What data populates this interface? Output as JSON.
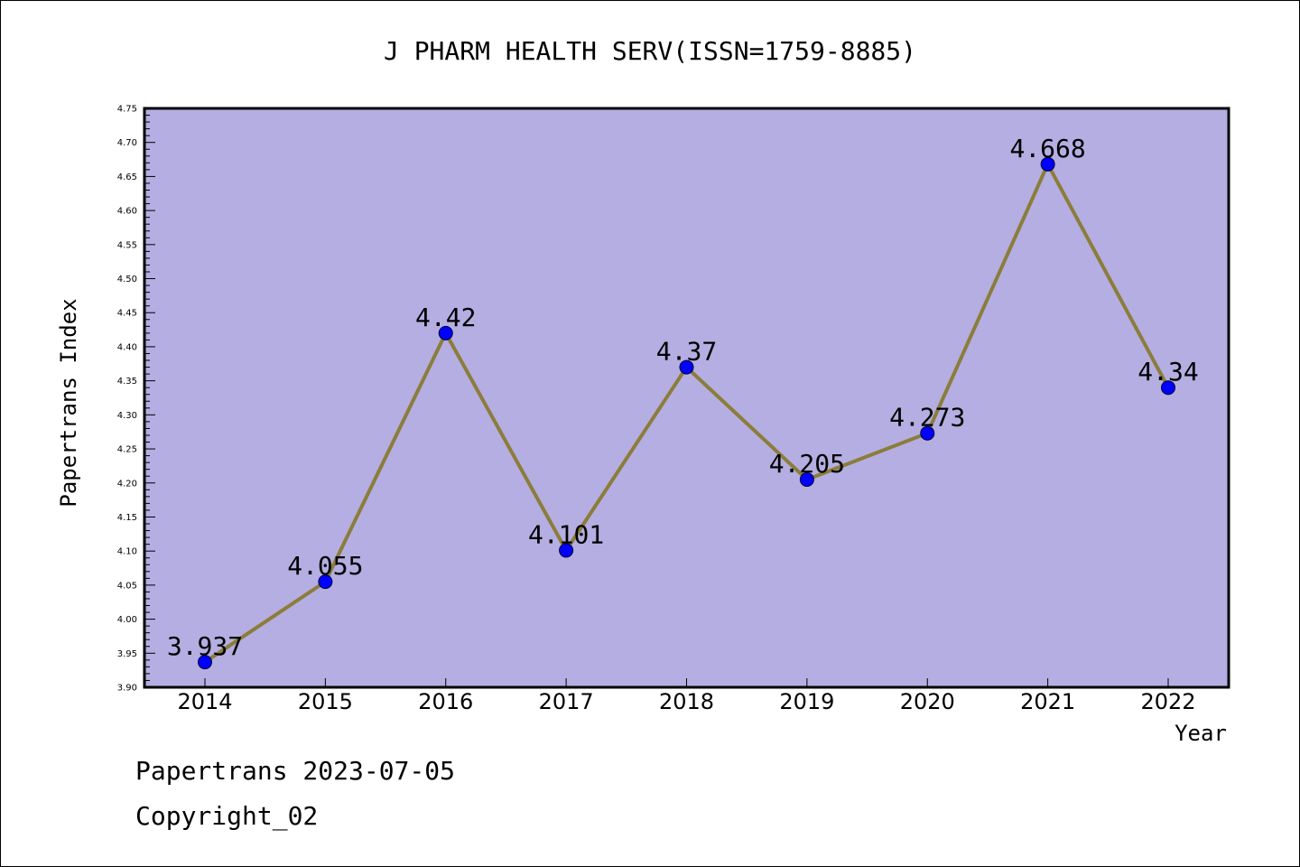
{
  "chart_data": {
    "type": "line",
    "title": "J PHARM HEALTH SERV(ISSN=1759-8885)",
    "xlabel": "Year",
    "ylabel": "Papertrans Index",
    "categories": [
      "2014",
      "2015",
      "2016",
      "2017",
      "2018",
      "2019",
      "2020",
      "2021",
      "2022"
    ],
    "series": [
      {
        "values": [
          3.937,
          4.055,
          4.42,
          4.101,
          4.37,
          4.205,
          4.273,
          4.668,
          4.34
        ],
        "labels": [
          "3.937",
          "4.055",
          "4.42",
          "4.101",
          "4.37",
          "4.205",
          "4.273",
          "4.668",
          "4.34"
        ]
      }
    ],
    "ylim": [
      3.9,
      4.75
    ],
    "yticks": [
      "3.90",
      "3.95",
      "4.00",
      "4.05",
      "4.10",
      "4.15",
      "4.20",
      "4.25",
      "4.30",
      "4.35",
      "4.40",
      "4.45",
      "4.50",
      "4.55",
      "4.60",
      "4.65",
      "4.70",
      "4.75"
    ],
    "grid": false,
    "colors": {
      "plot_background": "#b4aee2",
      "line": "#8b7d3a",
      "marker": "#0000ff"
    }
  },
  "footer": {
    "line1": "Papertrans 2023-07-05",
    "line2": "Copyright_02"
  }
}
